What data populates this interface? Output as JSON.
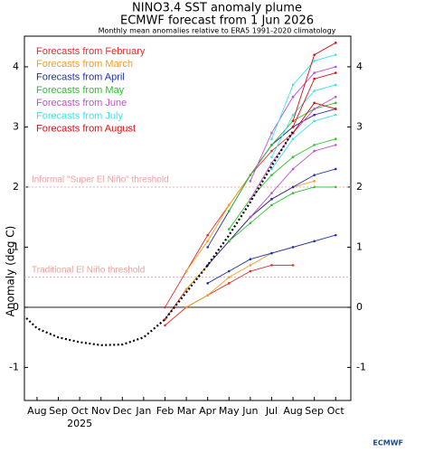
{
  "chart_data": {
    "type": "line",
    "title": "NINO3.4 SST anomaly plume",
    "subtitle": "ECMWF forecast from 1 Jun 2026",
    "note": "Monthly mean anomalies relative to ERA5 1991-2020 climatology",
    "y_label": "Anomaly (deg C)",
    "year_label": "2025",
    "logo": "ECMWF",
    "xlim": [
      -0.59,
      14.71
    ],
    "ylim": [
      -1.55,
      4.51
    ],
    "xticks": [
      {
        "value": 0,
        "label": "Aug"
      },
      {
        "value": 1,
        "label": "Sep"
      },
      {
        "value": 2,
        "label": "Oct"
      },
      {
        "value": 3,
        "label": "Nov"
      },
      {
        "value": 4,
        "label": "Dec"
      },
      {
        "value": 5,
        "label": "Jan"
      },
      {
        "value": 6,
        "label": "Feb"
      },
      {
        "value": 7,
        "label": "Mar"
      },
      {
        "value": 8,
        "label": "Apr"
      },
      {
        "value": 9,
        "label": "May"
      },
      {
        "value": 10,
        "label": "Jun"
      },
      {
        "value": 11,
        "label": "Jul"
      },
      {
        "value": 12,
        "label": "Aug"
      },
      {
        "value": 13,
        "label": "Sep"
      },
      {
        "value": 14,
        "label": "Oct"
      }
    ],
    "yticks": [
      -1,
      0,
      1,
      2,
      3,
      4
    ],
    "thresholds": [
      {
        "value": 2,
        "label": "Informal \"Super El Niño\" threshold"
      },
      {
        "value": 0.5,
        "label": "Traditional El Niño threshold"
      }
    ],
    "observed": {
      "color": "#000000",
      "x": [
        -0.5,
        0,
        1,
        2,
        3,
        4,
        5,
        6,
        7,
        8,
        9,
        10,
        11,
        12
      ],
      "values": [
        -0.18,
        -0.35,
        -0.5,
        -0.58,
        -0.63,
        -0.62,
        -0.5,
        -0.2,
        0.25,
        0.7,
        1.2,
        1.75,
        2.35,
        2.93
      ]
    },
    "x": [
      6,
      7,
      8,
      9,
      10,
      11,
      12,
      13,
      14
    ],
    "groups": [
      {
        "name": "Forecasts from February",
        "color": "#e0302a",
        "members": [
          [
            -0.3,
            0,
            0.2,
            0.4,
            0.6,
            0.7,
            0.7,
            null,
            null
          ],
          [
            -0.2,
            0.3,
            0.7,
            1.1,
            1.5,
            1.8,
            2.0,
            null,
            null
          ],
          [
            0,
            0.6,
            1.2,
            1.7,
            2.2,
            2.6,
            2.9,
            null,
            null
          ]
        ]
      },
      {
        "name": "Forecasts from March",
        "color": "#f0a020",
        "members": [
          [
            null,
            0,
            0.2,
            0.5,
            0.7,
            0.9,
            1.0,
            1.1,
            null
          ],
          [
            null,
            0.3,
            0.7,
            1.1,
            1.5,
            1.8,
            2.0,
            2.1,
            null
          ],
          [
            null,
            0.6,
            1.1,
            1.7,
            2.2,
            2.7,
            3.0,
            3.2,
            null
          ]
        ]
      },
      {
        "name": "Forecasts from April",
        "color": "#2030b0",
        "members": [
          [
            null,
            null,
            0.4,
            0.6,
            0.8,
            0.9,
            1.0,
            1.1,
            1.2
          ],
          [
            null,
            null,
            0.7,
            1.1,
            1.5,
            1.8,
            2.0,
            2.2,
            2.3
          ],
          [
            null,
            null,
            1.0,
            1.6,
            2.2,
            2.7,
            3.0,
            3.2,
            3.3
          ]
        ]
      },
      {
        "name": "Forecasts from May",
        "color": "#30c030",
        "members": [
          [
            null,
            null,
            null,
            1.1,
            1.4,
            1.7,
            1.9,
            2.0,
            2.0
          ],
          [
            null,
            null,
            null,
            1.3,
            1.8,
            2.2,
            2.5,
            2.7,
            2.8
          ],
          [
            null,
            null,
            null,
            1.6,
            2.2,
            2.7,
            3.1,
            3.3,
            3.4
          ]
        ]
      },
      {
        "name": "Forecasts from June",
        "color": "#c050d0",
        "members": [
          [
            null,
            null,
            null,
            null,
            1.5,
            1.9,
            2.3,
            2.6,
            2.7
          ],
          [
            null,
            null,
            null,
            null,
            1.8,
            2.4,
            2.9,
            3.3,
            3.5
          ],
          [
            null,
            null,
            null,
            null,
            2.1,
            2.9,
            3.5,
            3.9,
            4.0
          ]
        ]
      },
      {
        "name": "Forecasts from July",
        "color": "#40e0e8",
        "members": [
          [
            null,
            null,
            null,
            null,
            null,
            2.3,
            2.8,
            3.1,
            3.2
          ],
          [
            null,
            null,
            null,
            null,
            null,
            2.5,
            3.2,
            3.6,
            3.7
          ],
          [
            null,
            null,
            null,
            null,
            null,
            2.8,
            3.7,
            4.1,
            4.2
          ]
        ]
      },
      {
        "name": "Forecasts from August",
        "color": "#d01010",
        "members": [
          [
            null,
            null,
            null,
            null,
            null,
            null,
            2.9,
            3.4,
            3.3
          ],
          [
            null,
            null,
            null,
            null,
            null,
            null,
            3.0,
            3.8,
            3.9
          ],
          [
            null,
            null,
            null,
            null,
            null,
            null,
            3.1,
            4.2,
            4.4
          ]
        ]
      }
    ]
  }
}
